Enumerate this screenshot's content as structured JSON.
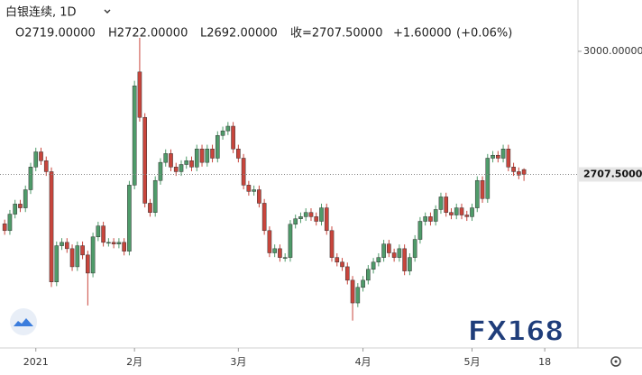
{
  "header": {
    "symbol": "白银连续, 1D",
    "open": "O2719.00000",
    "high": "H2722.00000",
    "low": "L2692.00000",
    "close": "收=2707.50000",
    "change": "+1.60000",
    "change_pct": "(+0.06%)"
  },
  "watermark": "FX168",
  "chart_data": {
    "type": "candlestick",
    "up_color": "#4f9b6a",
    "down_color": "#c8453c",
    "ylim": [
      2295,
      3122
    ],
    "yticks": [
      {
        "value": 3000,
        "label": "3000.00000"
      }
    ],
    "xlim": [
      -0.9,
      110.4
    ],
    "xticks": [
      {
        "value": 6,
        "label": "2021"
      },
      {
        "value": 25,
        "label": "2月"
      },
      {
        "value": 45,
        "label": "3月"
      },
      {
        "value": 69,
        "label": "4月"
      },
      {
        "value": 90,
        "label": "5月"
      },
      {
        "value": 104,
        "label": "18"
      }
    ],
    "last_price": {
      "value": 2707.5,
      "label": "2707.50000"
    },
    "open": [
      2590,
      2574,
      2613,
      2637,
      2628,
      2671,
      2725,
      2761,
      2740,
      2714,
      2452,
      2538,
      2546,
      2531,
      2488,
      2538,
      2516,
      2473,
      2559,
      2585,
      2546,
      2546,
      2542,
      2546,
      2525,
      2682,
      2951,
      2843,
      2639,
      2617,
      2693,
      2736,
      2757,
      2725,
      2714,
      2731,
      2740,
      2725,
      2768,
      2736,
      2768,
      2746,
      2800,
      2811,
      2822,
      2768,
      2746,
      2682,
      2667,
      2671,
      2639,
      2574,
      2521,
      2531,
      2510,
      2510,
      2589,
      2602,
      2607,
      2617,
      2607,
      2596,
      2628,
      2574,
      2510,
      2499,
      2488,
      2456,
      2402,
      2439,
      2456,
      2482,
      2499,
      2510,
      2542,
      2521,
      2510,
      2531,
      2478,
      2510,
      2553,
      2596,
      2607,
      2596,
      2624,
      2654,
      2617,
      2611,
      2628,
      2611,
      2607,
      2628,
      2693,
      2650,
      2746,
      2753,
      2746,
      2768,
      2725,
      2714,
      2719
    ],
    "high": [
      2600,
      2623,
      2647,
      2647,
      2681,
      2735,
      2771,
      2771,
      2750,
      2724,
      2548,
      2556,
      2556,
      2541,
      2548,
      2548,
      2526,
      2569,
      2595,
      2595,
      2556,
      2556,
      2556,
      2556,
      2692,
      2930,
      3032,
      2853,
      2649,
      2703,
      2746,
      2767,
      2767,
      2735,
      2741,
      2750,
      2750,
      2778,
      2778,
      2778,
      2778,
      2810,
      2821,
      2832,
      2832,
      2778,
      2756,
      2692,
      2681,
      2681,
      2649,
      2584,
      2541,
      2541,
      2520,
      2599,
      2612,
      2617,
      2627,
      2627,
      2617,
      2638,
      2638,
      2584,
      2520,
      2509,
      2498,
      2466,
      2449,
      2466,
      2492,
      2509,
      2520,
      2552,
      2552,
      2531,
      2541,
      2541,
      2520,
      2563,
      2606,
      2617,
      2617,
      2634,
      2664,
      2664,
      2627,
      2638,
      2638,
      2621,
      2638,
      2703,
      2703,
      2756,
      2763,
      2763,
      2778,
      2778,
      2735,
      2724,
      2722
    ],
    "low": [
      2564,
      2564,
      2603,
      2618,
      2618,
      2661,
      2715,
      2730,
      2704,
      2440,
      2442,
      2528,
      2521,
      2478,
      2478,
      2506,
      2396,
      2463,
      2549,
      2536,
      2536,
      2532,
      2532,
      2515,
      2515,
      2672,
      2833,
      2629,
      2607,
      2607,
      2683,
      2726,
      2715,
      2704,
      2704,
      2721,
      2715,
      2715,
      2726,
      2726,
      2736,
      2736,
      2790,
      2801,
      2758,
      2736,
      2672,
      2657,
      2657,
      2629,
      2564,
      2511,
      2511,
      2500,
      2500,
      2500,
      2579,
      2592,
      2597,
      2597,
      2586,
      2586,
      2564,
      2500,
      2489,
      2478,
      2446,
      2360,
      2392,
      2429,
      2446,
      2472,
      2489,
      2500,
      2511,
      2500,
      2500,
      2468,
      2468,
      2500,
      2543,
      2586,
      2586,
      2586,
      2614,
      2607,
      2601,
      2601,
      2601,
      2597,
      2597,
      2618,
      2640,
      2640,
      2736,
      2736,
      2736,
      2715,
      2704,
      2696,
      2692
    ],
    "close": [
      2574,
      2613,
      2637,
      2628,
      2671,
      2725,
      2761,
      2740,
      2714,
      2452,
      2538,
      2546,
      2531,
      2488,
      2538,
      2516,
      2473,
      2559,
      2585,
      2546,
      2546,
      2542,
      2546,
      2525,
      2682,
      2918,
      2843,
      2639,
      2617,
      2693,
      2736,
      2757,
      2725,
      2714,
      2731,
      2740,
      2725,
      2768,
      2736,
      2768,
      2746,
      2800,
      2811,
      2822,
      2768,
      2746,
      2682,
      2667,
      2671,
      2639,
      2574,
      2521,
      2531,
      2510,
      2510,
      2589,
      2602,
      2607,
      2617,
      2607,
      2596,
      2628,
      2574,
      2510,
      2499,
      2488,
      2456,
      2402,
      2439,
      2456,
      2482,
      2499,
      2510,
      2542,
      2521,
      2510,
      2531,
      2478,
      2510,
      2553,
      2596,
      2607,
      2596,
      2624,
      2654,
      2617,
      2611,
      2628,
      2611,
      2607,
      2628,
      2693,
      2650,
      2746,
      2753,
      2746,
      2768,
      2725,
      2714,
      2705.9,
      2707.5
    ]
  }
}
